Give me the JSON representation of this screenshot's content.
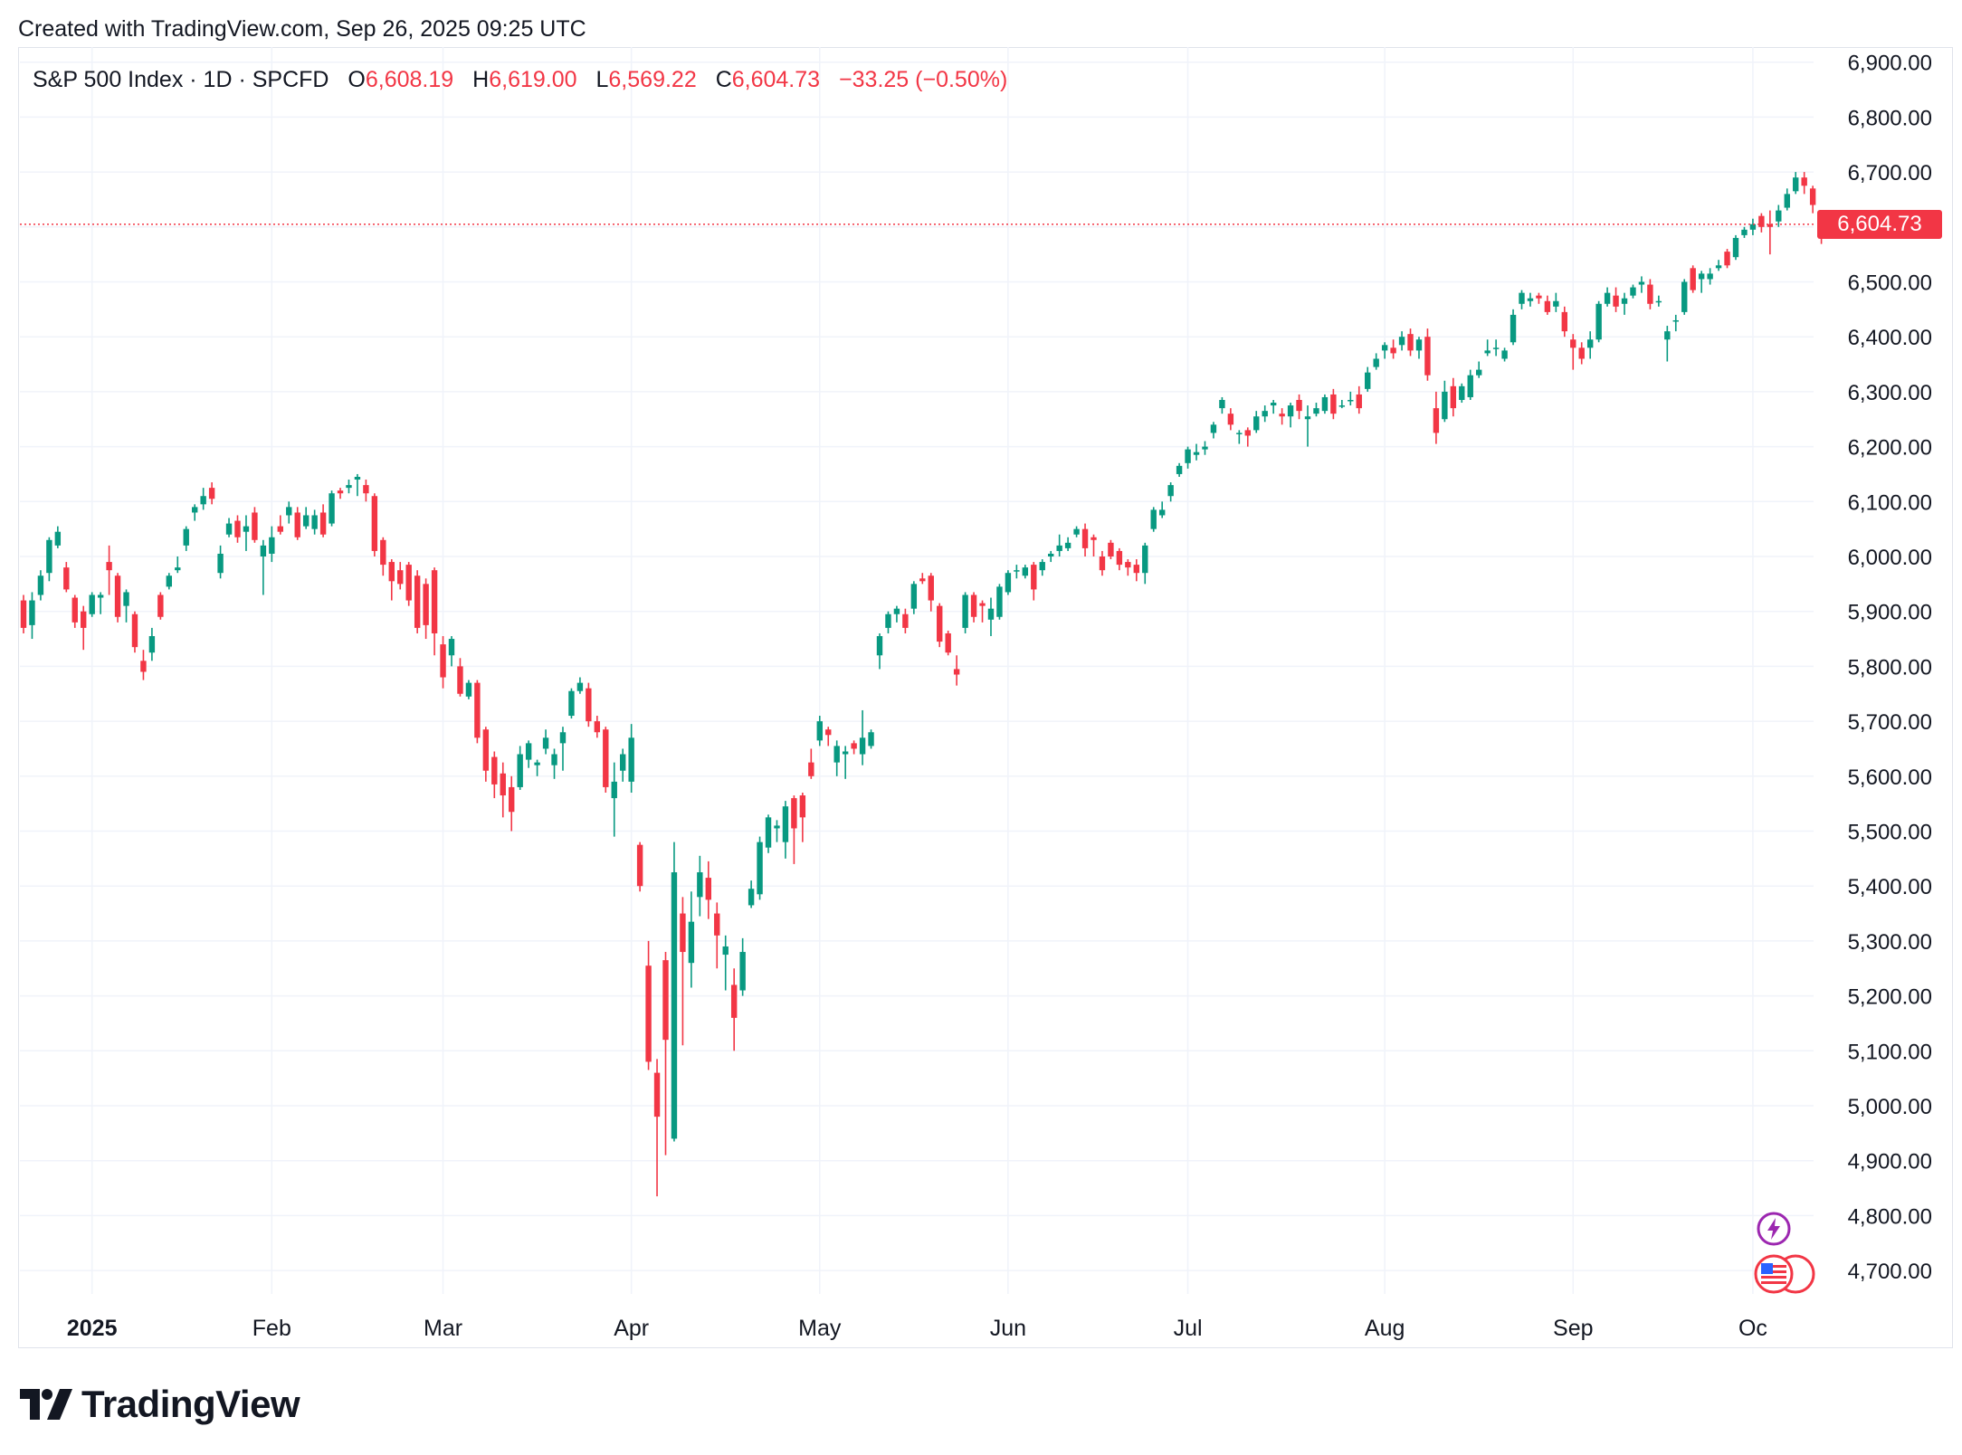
{
  "header": {
    "created_text": "Created with TradingView.com, Sep 26, 2025 09:25 UTC"
  },
  "legend": {
    "symbol": "S&P 500 Index · 1D · SPCFD",
    "o_label": "O",
    "o_value": "6,608.19",
    "h_label": "H",
    "h_value": "6,619.00",
    "l_label": "L",
    "l_value": "6,569.22",
    "c_label": "C",
    "c_value": "6,604.73",
    "change": "−33.25 (−0.50%)"
  },
  "price_label": "6,604.73",
  "logo": {
    "text": "TradingView"
  },
  "colors": {
    "up": "#089981",
    "down": "#f23645",
    "grid": "#f0f3fa",
    "axis_text": "#131722"
  },
  "icons": [
    "tradingview-logo-icon",
    "flash-event-icon",
    "us-flag-icon"
  ],
  "chart_data": {
    "type": "candlestick",
    "title": "S&P 500 Index · 1D · SPCFD",
    "ylim": [
      4640,
      6940
    ],
    "y_ticks": [
      "6,900.00",
      "6,800.00",
      "6,700.00",
      "6,600.00",
      "6,500.00",
      "6,400.00",
      "6,300.00",
      "6,200.00",
      "6,100.00",
      "6,000.00",
      "5,900.00",
      "5,800.00",
      "5,700.00",
      "5,600.00",
      "5,500.00",
      "5,400.00",
      "5,300.00",
      "5,200.00",
      "5,100.00",
      "5,000.00",
      "4,900.00",
      "4,800.00",
      "4,700.00"
    ],
    "x_ticks": [
      {
        "label": "2025",
        "index": 8,
        "bold": true
      },
      {
        "label": "Feb",
        "index": 29
      },
      {
        "label": "Mar",
        "index": 49
      },
      {
        "label": "Apr",
        "index": 71
      },
      {
        "label": "May",
        "index": 93
      },
      {
        "label": "Jun",
        "index": 115
      },
      {
        "label": "Jul",
        "index": 136
      },
      {
        "label": "Aug",
        "index": 159
      },
      {
        "label": "Sep",
        "index": 181
      },
      {
        "label": "Oc",
        "index": 202
      }
    ],
    "last_price": 6604.73,
    "grid": true,
    "candles": [
      [
        5920,
        5870,
        5930,
        5860
      ],
      [
        5875,
        5920,
        5935,
        5850
      ],
      [
        5930,
        5965,
        5975,
        5920
      ],
      [
        5970,
        6030,
        6035,
        5955
      ],
      [
        6020,
        6045,
        6055,
        6015
      ],
      [
        5980,
        5940,
        5990,
        5935
      ],
      [
        5925,
        5880,
        5930,
        5870
      ],
      [
        5900,
        5870,
        5910,
        5830
      ],
      [
        5895,
        5930,
        5935,
        5890
      ],
      [
        5925,
        5930,
        5935,
        5895
      ],
      [
        5990,
        5975,
        6020,
        5930
      ],
      [
        5965,
        5890,
        5970,
        5880
      ],
      [
        5910,
        5935,
        5940,
        5880
      ],
      [
        5895,
        5835,
        5900,
        5825
      ],
      [
        5810,
        5790,
        5830,
        5775
      ],
      [
        5825,
        5855,
        5870,
        5810
      ],
      [
        5930,
        5890,
        5935,
        5885
      ],
      [
        5945,
        5965,
        5970,
        5940
      ],
      [
        5975,
        5980,
        6000,
        5970
      ],
      [
        6020,
        6050,
        6055,
        6010
      ],
      [
        6080,
        6090,
        6095,
        6065
      ],
      [
        6095,
        6110,
        6125,
        6085
      ],
      [
        6125,
        6105,
        6135,
        6095
      ],
      [
        5970,
        6005,
        6020,
        5960
      ],
      [
        6040,
        6060,
        6070,
        6035
      ],
      [
        6065,
        6035,
        6075,
        6025
      ],
      [
        6045,
        6055,
        6075,
        6010
      ],
      [
        6080,
        6030,
        6090,
        6025
      ],
      [
        6000,
        6020,
        6030,
        5930
      ],
      [
        6005,
        6035,
        6055,
        5990
      ],
      [
        6055,
        6045,
        6075,
        6040
      ],
      [
        6075,
        6090,
        6100,
        6060
      ],
      [
        6080,
        6035,
        6090,
        6030
      ],
      [
        6055,
        6075,
        6090,
        6050
      ],
      [
        6050,
        6075,
        6085,
        6040
      ],
      [
        6080,
        6040,
        6095,
        6035
      ],
      [
        6060,
        6115,
        6120,
        6055
      ],
      [
        6120,
        6115,
        6125,
        6105
      ],
      [
        6125,
        6130,
        6140,
        6115
      ],
      [
        6140,
        6145,
        6150,
        6110
      ],
      [
        6130,
        6115,
        6140,
        6100
      ],
      [
        6110,
        6010,
        6115,
        6000
      ],
      [
        6030,
        5985,
        6035,
        5965
      ],
      [
        5990,
        5955,
        5995,
        5920
      ],
      [
        5975,
        5950,
        5990,
        5940
      ],
      [
        5985,
        5920,
        5990,
        5910
      ],
      [
        5965,
        5870,
        5975,
        5860
      ],
      [
        5950,
        5875,
        5960,
        5850
      ],
      [
        5975,
        5860,
        5980,
        5820
      ],
      [
        5840,
        5780,
        5855,
        5760
      ],
      [
        5820,
        5850,
        5855,
        5800
      ],
      [
        5800,
        5750,
        5815,
        5745
      ],
      [
        5745,
        5770,
        5775,
        5740
      ],
      [
        5770,
        5670,
        5775,
        5660
      ],
      [
        5685,
        5610,
        5690,
        5590
      ],
      [
        5635,
        5585,
        5645,
        5560
      ],
      [
        5605,
        5565,
        5625,
        5525
      ],
      [
        5580,
        5535,
        5600,
        5500
      ],
      [
        5580,
        5640,
        5655,
        5575
      ],
      [
        5630,
        5660,
        5665,
        5615
      ],
      [
        5620,
        5625,
        5630,
        5600
      ],
      [
        5650,
        5670,
        5685,
        5640
      ],
      [
        5620,
        5640,
        5650,
        5595
      ],
      [
        5660,
        5680,
        5690,
        5610
      ],
      [
        5710,
        5755,
        5760,
        5705
      ],
      [
        5755,
        5770,
        5780,
        5750
      ],
      [
        5760,
        5700,
        5770,
        5690
      ],
      [
        5700,
        5680,
        5710,
        5670
      ],
      [
        5685,
        5580,
        5690,
        5570
      ],
      [
        5560,
        5590,
        5625,
        5490
      ],
      [
        5610,
        5640,
        5650,
        5590
      ],
      [
        5590,
        5670,
        5695,
        5570
      ],
      [
        5475,
        5400,
        5480,
        5390
      ],
      [
        5255,
        5080,
        5300,
        5065
      ],
      [
        5060,
        4980,
        5085,
        4835
      ],
      [
        5265,
        5120,
        5280,
        4910
      ],
      [
        4940,
        5425,
        5480,
        4935
      ],
      [
        5350,
        5280,
        5380,
        5110
      ],
      [
        5260,
        5335,
        5390,
        5215
      ],
      [
        5380,
        5425,
        5455,
        5345
      ],
      [
        5415,
        5375,
        5445,
        5340
      ],
      [
        5350,
        5310,
        5370,
        5250
      ],
      [
        5275,
        5290,
        5310,
        5210
      ],
      [
        5220,
        5160,
        5250,
        5100
      ],
      [
        5210,
        5280,
        5305,
        5200
      ],
      [
        5365,
        5395,
        5410,
        5360
      ],
      [
        5385,
        5480,
        5490,
        5375
      ],
      [
        5470,
        5525,
        5530,
        5460
      ],
      [
        5505,
        5510,
        5520,
        5480
      ],
      [
        5480,
        5545,
        5555,
        5450
      ],
      [
        5560,
        5505,
        5565,
        5440
      ],
      [
        5565,
        5525,
        5570,
        5480
      ],
      [
        5625,
        5600,
        5650,
        5595
      ],
      [
        5665,
        5700,
        5710,
        5655
      ],
      [
        5685,
        5675,
        5690,
        5655
      ],
      [
        5625,
        5655,
        5665,
        5600
      ],
      [
        5640,
        5645,
        5655,
        5595
      ],
      [
        5660,
        5650,
        5665,
        5640
      ],
      [
        5640,
        5670,
        5720,
        5620
      ],
      [
        5655,
        5680,
        5685,
        5650
      ],
      [
        5820,
        5855,
        5860,
        5795
      ],
      [
        5870,
        5895,
        5900,
        5860
      ],
      [
        5895,
        5905,
        5910,
        5880
      ],
      [
        5895,
        5870,
        5905,
        5860
      ],
      [
        5905,
        5950,
        5955,
        5895
      ],
      [
        5960,
        5955,
        5970,
        5950
      ],
      [
        5965,
        5920,
        5970,
        5900
      ],
      [
        5910,
        5845,
        5915,
        5835
      ],
      [
        5860,
        5825,
        5865,
        5820
      ],
      [
        5795,
        5785,
        5820,
        5765
      ],
      [
        5870,
        5930,
        5935,
        5860
      ],
      [
        5930,
        5890,
        5935,
        5880
      ],
      [
        5915,
        5910,
        5920,
        5880
      ],
      [
        5885,
        5905,
        5925,
        5855
      ],
      [
        5890,
        5945,
        5950,
        5885
      ],
      [
        5935,
        5970,
        5975,
        5930
      ],
      [
        5975,
        5975,
        5985,
        5960
      ],
      [
        5965,
        5980,
        5985,
        5960
      ],
      [
        5985,
        5940,
        5990,
        5920
      ],
      [
        5975,
        5990,
        5995,
        5965
      ],
      [
        6000,
        6005,
        6010,
        5990
      ],
      [
        6010,
        6020,
        6040,
        6000
      ],
      [
        6015,
        6025,
        6035,
        6010
      ],
      [
        6040,
        6050,
        6055,
        6035
      ],
      [
        6050,
        6015,
        6060,
        6000
      ],
      [
        6035,
        6030,
        6040,
        6000
      ],
      [
        6000,
        5975,
        6010,
        5965
      ],
      [
        6025,
        6000,
        6030,
        5995
      ],
      [
        6010,
        5985,
        6015,
        5975
      ],
      [
        5990,
        5980,
        5995,
        5965
      ],
      [
        5985,
        5970,
        5995,
        5955
      ],
      [
        5970,
        6020,
        6025,
        5950
      ],
      [
        6050,
        6085,
        6090,
        6045
      ],
      [
        6075,
        6085,
        6100,
        6070
      ],
      [
        6110,
        6130,
        6135,
        6100
      ],
      [
        6150,
        6165,
        6170,
        6145
      ],
      [
        6170,
        6195,
        6200,
        6160
      ],
      [
        6185,
        6190,
        6205,
        6175
      ],
      [
        6195,
        6200,
        6210,
        6185
      ],
      [
        6225,
        6240,
        6245,
        6215
      ],
      [
        6270,
        6285,
        6290,
        6260
      ],
      [
        6260,
        6240,
        6270,
        6230
      ],
      [
        6225,
        6225,
        6230,
        6205
      ],
      [
        6230,
        6220,
        6235,
        6200
      ],
      [
        6230,
        6255,
        6265,
        6225
      ],
      [
        6255,
        6265,
        6275,
        6245
      ],
      [
        6275,
        6280,
        6285,
        6260
      ],
      [
        6260,
        6255,
        6270,
        6240
      ],
      [
        6255,
        6275,
        6280,
        6235
      ],
      [
        6285,
        6265,
        6295,
        6250
      ],
      [
        6250,
        6255,
        6275,
        6200
      ],
      [
        6260,
        6270,
        6280,
        6255
      ],
      [
        6265,
        6290,
        6295,
        6260
      ],
      [
        6295,
        6260,
        6305,
        6250
      ],
      [
        6275,
        6275,
        6285,
        6270
      ],
      [
        6285,
        6285,
        6300,
        6275
      ],
      [
        6295,
        6270,
        6310,
        6260
      ],
      [
        6305,
        6335,
        6345,
        6300
      ],
      [
        6345,
        6360,
        6370,
        6340
      ],
      [
        6375,
        6385,
        6390,
        6360
      ],
      [
        6380,
        6370,
        6395,
        6360
      ],
      [
        6385,
        6400,
        6410,
        6375
      ],
      [
        6405,
        6375,
        6415,
        6365
      ],
      [
        6375,
        6395,
        6400,
        6360
      ],
      [
        6400,
        6330,
        6415,
        6320
      ],
      [
        6270,
        6225,
        6300,
        6205
      ],
      [
        6250,
        6300,
        6320,
        6245
      ],
      [
        6310,
        6270,
        6325,
        6255
      ],
      [
        6285,
        6310,
        6315,
        6280
      ],
      [
        6290,
        6330,
        6340,
        6285
      ],
      [
        6330,
        6340,
        6355,
        6325
      ],
      [
        6370,
        6375,
        6395,
        6365
      ],
      [
        6380,
        6380,
        6395,
        6365
      ],
      [
        6360,
        6375,
        6380,
        6355
      ],
      [
        6390,
        6440,
        6450,
        6385
      ],
      [
        6460,
        6480,
        6485,
        6450
      ],
      [
        6465,
        6470,
        6480,
        6455
      ],
      [
        6475,
        6470,
        6480,
        6460
      ],
      [
        6465,
        6445,
        6475,
        6440
      ],
      [
        6455,
        6465,
        6480,
        6445
      ],
      [
        6445,
        6410,
        6455,
        6400
      ],
      [
        6395,
        6380,
        6405,
        6340
      ],
      [
        6380,
        6360,
        6390,
        6350
      ],
      [
        6380,
        6395,
        6410,
        6360
      ],
      [
        6395,
        6460,
        6465,
        6390
      ],
      [
        6460,
        6480,
        6490,
        6455
      ],
      [
        6475,
        6455,
        6490,
        6445
      ],
      [
        6460,
        6470,
        6480,
        6440
      ],
      [
        6475,
        6490,
        6495,
        6470
      ],
      [
        6495,
        6500,
        6510,
        6480
      ],
      [
        6495,
        6460,
        6505,
        6450
      ],
      [
        6465,
        6465,
        6475,
        6455
      ],
      [
        6395,
        6410,
        6420,
        6355
      ],
      [
        6430,
        6430,
        6440,
        6410
      ],
      [
        6445,
        6500,
        6505,
        6440
      ],
      [
        6525,
        6485,
        6530,
        6480
      ],
      [
        6505,
        6515,
        6520,
        6480
      ],
      [
        6505,
        6515,
        6525,
        6495
      ],
      [
        6525,
        6530,
        6540,
        6520
      ],
      [
        6555,
        6530,
        6560,
        6525
      ],
      [
        6545,
        6580,
        6585,
        6540
      ],
      [
        6585,
        6595,
        6600,
        6580
      ],
      [
        6595,
        6605,
        6615,
        6585
      ],
      [
        6620,
        6600,
        6625,
        6590
      ],
      [
        6605,
        6600,
        6630,
        6550
      ],
      [
        6610,
        6630,
        6640,
        6600
      ],
      [
        6635,
        6660,
        6670,
        6630
      ],
      [
        6665,
        6690,
        6700,
        6660
      ],
      [
        6690,
        6675,
        6700,
        6660
      ],
      [
        6670,
        6640,
        6675,
        6625
      ],
      [
        6608,
        6605,
        6619,
        6569
      ]
    ]
  }
}
